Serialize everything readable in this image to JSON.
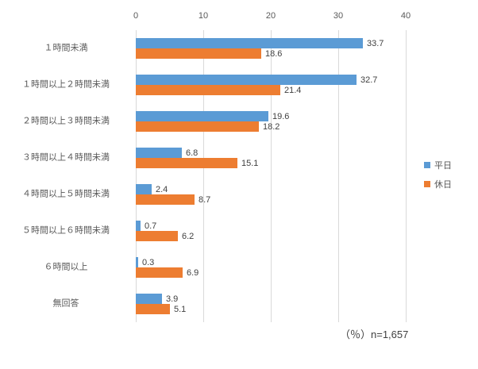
{
  "chart_data": {
    "type": "bar",
    "orientation": "horizontal",
    "categories": [
      "１時間未満",
      "１時間以上２時間未満",
      "２時間以上３時間未満",
      "３時間以上４時間未満",
      "４時間以上５時間未満",
      "５時間以上６時間未満",
      "６時間以上",
      "無回答"
    ],
    "series": [
      {
        "name": "平日",
        "color": "#5B9BD5",
        "values": [
          33.7,
          32.7,
          19.6,
          6.8,
          2.4,
          0.7,
          0.3,
          3.9
        ]
      },
      {
        "name": "休日",
        "color": "#ED7D31",
        "values": [
          18.6,
          21.4,
          18.2,
          15.1,
          8.7,
          6.2,
          6.9,
          5.1
        ]
      }
    ],
    "xlim": [
      0,
      40
    ],
    "x_ticks": [
      "0",
      "10",
      "20",
      "30",
      "40"
    ],
    "grid": true,
    "value_labels": true,
    "legend_position": "right",
    "footnote": "（％）n=1,657",
    "colors": {
      "gridline": "#D9D9D9",
      "tick_label": "#595959",
      "category_label": "#595959",
      "value_label": "#404040",
      "footnote": "#404040"
    }
  }
}
